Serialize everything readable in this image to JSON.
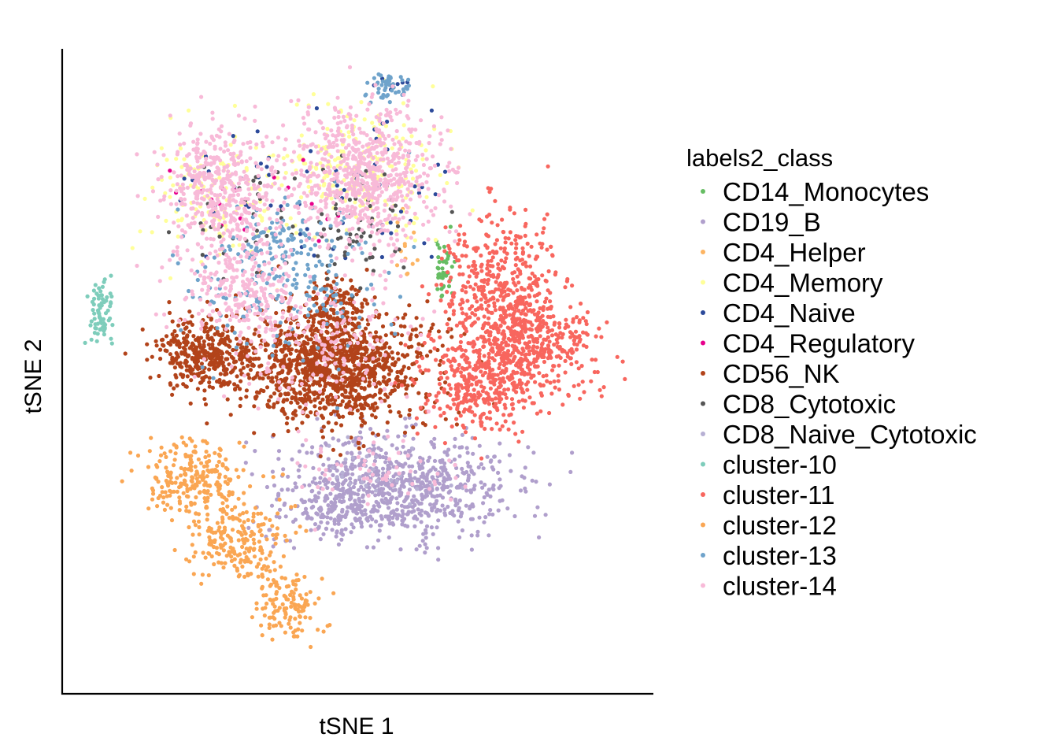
{
  "chart_data": {
    "type": "scatter",
    "title": "",
    "xlabel": "tSNE 1",
    "ylabel": "tSNE 2",
    "xlim": [
      -50,
      50
    ],
    "ylim": [
      -45,
      55
    ],
    "grid": false,
    "ticks": "none",
    "legend": {
      "title": "labels2_class",
      "placement": "right"
    },
    "series": [
      {
        "name": "CD14_Monocytes",
        "color": "#66BD63",
        "clusters": [
          {
            "center": [
              14.5,
              20.5
            ],
            "spread": [
              0.8,
              2.8
            ],
            "n": 40
          }
        ]
      },
      {
        "name": "CD19_B",
        "color": "#B09FCC",
        "clusters": [
          {
            "center": [
              7,
              -13
            ],
            "spread": [
              10,
              4
            ],
            "n": 700
          },
          {
            "center": [
              -4,
              -16
            ],
            "spread": [
              6,
              3
            ],
            "n": 180
          }
        ]
      },
      {
        "name": "CD4_Helper",
        "color": "#FDB462",
        "clusters": [
          {
            "center": [
              8,
              24
            ],
            "spread": [
              1,
              3
            ],
            "n": 12
          }
        ]
      },
      {
        "name": "CD4_Memory",
        "color": "#FFFF99",
        "clusters": [
          {
            "center": [
              -24,
              32
            ],
            "spread": [
              6,
              5
            ],
            "n": 120
          },
          {
            "center": [
              1,
              36
            ],
            "spread": [
              7,
              5
            ],
            "n": 220
          }
        ]
      },
      {
        "name": "CD4_Naive",
        "color": "#2C4A9A",
        "clusters": [
          {
            "center": [
              -20,
              34
            ],
            "spread": [
              6,
              5
            ],
            "n": 25
          },
          {
            "center": [
              2,
              33
            ],
            "spread": [
              7,
              7
            ],
            "n": 45
          },
          {
            "center": [
              5,
              49
            ],
            "spread": [
              2,
              1
            ],
            "n": 6
          }
        ]
      },
      {
        "name": "CD4_Regulatory",
        "color": "#E7008C",
        "clusters": [
          {
            "center": [
              -24,
              31
            ],
            "spread": [
              5,
              3
            ],
            "n": 10
          },
          {
            "center": [
              -2,
              31
            ],
            "spread": [
              6,
              4
            ],
            "n": 8
          }
        ]
      },
      {
        "name": "CD56_NK",
        "color": "#B2431A",
        "clusters": [
          {
            "center": [
              -4,
              5.5
            ],
            "spread": [
              8,
              4.5
            ],
            "n": 1200
          },
          {
            "center": [
              -26,
              7.5
            ],
            "spread": [
              4,
              2.5
            ],
            "n": 350
          },
          {
            "center": [
              -4,
              15
            ],
            "spread": [
              3,
              2
            ],
            "n": 90
          }
        ]
      },
      {
        "name": "CD8_Cytotoxic",
        "color": "#555555",
        "clusters": [
          {
            "center": [
              -1,
              27
            ],
            "spread": [
              6,
              5
            ],
            "n": 70
          },
          {
            "center": [
              -22,
              30
            ],
            "spread": [
              5,
              4
            ],
            "n": 25
          }
        ]
      },
      {
        "name": "CD8_Naive_Cytotoxic",
        "color": "#B7B0D4",
        "clusters": [
          {
            "center": [
              3,
              -11
            ],
            "spread": [
              6,
              3
            ],
            "n": 30
          }
        ]
      },
      {
        "name": "cluster-10",
        "color": "#7ECDBB",
        "clusters": [
          {
            "center": [
              -43.5,
              13.5
            ],
            "spread": [
              1,
              2.5
            ],
            "n": 70
          }
        ]
      },
      {
        "name": "cluster-11",
        "color": "#F8665E",
        "clusters": [
          {
            "center": [
              24,
              18
            ],
            "spread": [
              5,
              6
            ],
            "n": 400
          },
          {
            "center": [
              29,
              9
            ],
            "spread": [
              6,
              4
            ],
            "n": 450
          },
          {
            "center": [
              21,
              3
            ],
            "spread": [
              5,
              4
            ],
            "n": 350
          }
        ]
      },
      {
        "name": "cluster-12",
        "color": "#FAA653",
        "clusters": [
          {
            "center": [
              -28,
              -12
            ],
            "spread": [
              4,
              3
            ],
            "n": 250
          },
          {
            "center": [
              -20,
              -22
            ],
            "spread": [
              4,
              3
            ],
            "n": 200
          },
          {
            "center": [
              -12,
              -31
            ],
            "spread": [
              2.5,
              3
            ],
            "n": 130
          }
        ]
      },
      {
        "name": "cluster-13",
        "color": "#6FA3CB",
        "clusters": [
          {
            "center": [
              -12,
              19
            ],
            "spread": [
              8,
              6
            ],
            "n": 220
          },
          {
            "center": [
              5,
              49
            ],
            "spread": [
              2,
              1.2
            ],
            "n": 45
          },
          {
            "center": [
              -13,
              26
            ],
            "spread": [
              3,
              2
            ],
            "n": 40
          }
        ]
      },
      {
        "name": "cluster-14",
        "color": "#F8BAD8",
        "clusters": [
          {
            "center": [
              -23,
              33
            ],
            "spread": [
              5,
              5
            ],
            "n": 450
          },
          {
            "center": [
              1,
              35
            ],
            "spread": [
              6,
              6
            ],
            "n": 700
          },
          {
            "center": [
              -20,
              18
            ],
            "spread": [
              5,
              4
            ],
            "n": 220
          },
          {
            "center": [
              -6,
              9
            ],
            "spread": [
              9,
              5
            ],
            "n": 160
          },
          {
            "center": [
              5,
              -10
            ],
            "spread": [
              8,
              3
            ],
            "n": 60
          }
        ]
      }
    ]
  }
}
